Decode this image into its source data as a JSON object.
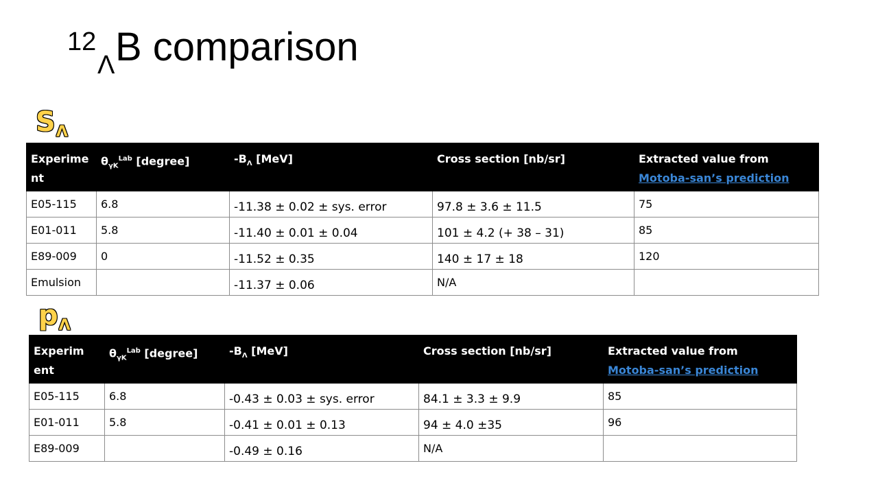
{
  "title": {
    "superscript": "12",
    "subscript": "Λ",
    "main": "B comparison"
  },
  "sections": [
    {
      "label": "S",
      "sub": "Λ"
    },
    {
      "label": "p",
      "sub": "Λ"
    }
  ],
  "table_header": {
    "experiment_1": "Experime nt",
    "experiment_2": "Experim ent",
    "theta_main": "θ",
    "theta_sub": "γK",
    "theta_sup": "Lab",
    "theta_rest": " [degree]",
    "binding_pre": "-B",
    "binding_sub": "Λ",
    "binding_rest": " [MeV]",
    "cross_section": "Cross section [nb/sr]",
    "extracted": "Extracted value from",
    "extracted_link": "Motoba-san’s prediction"
  },
  "s_table": {
    "rows": [
      {
        "experiment": "E05-115",
        "theta": "6.8",
        "binding": "-11.38 ± 0.02 ± sys. error",
        "cross": "97.8 ± 3.6 ± 11.5",
        "extracted": "75"
      },
      {
        "experiment": "E01-011",
        "theta": "5.8",
        "binding": "-11.40 ± 0.01 ± 0.04",
        "cross": "101 ± 4.2 (+ 38 – 31)",
        "extracted": "85"
      },
      {
        "experiment": "E89-009",
        "theta": "0",
        "binding": "-11.52 ± 0.35",
        "cross": "140 ± 17 ± 18",
        "extracted": "120"
      },
      {
        "experiment": "Emulsion",
        "theta": "",
        "binding": "-11.37 ± 0.06",
        "cross": "N/A",
        "extracted": ""
      }
    ]
  },
  "p_table": {
    "rows": [
      {
        "experiment": "E05-115",
        "theta": "6.8",
        "binding": "-0.43 ± 0.03 ± sys. error",
        "cross": "84.1 ± 3.3 ± 9.9",
        "extracted": "85"
      },
      {
        "experiment": "E01-011",
        "theta": "5.8",
        "binding": "-0.41 ± 0.01 ± 0.13",
        "cross": "94 ± 4.0 ±35",
        "extracted": "96"
      },
      {
        "experiment": "E89-009",
        "theta": "",
        "binding": "-0.49 ± 0.16",
        "cross": "N/A",
        "extracted": ""
      }
    ]
  },
  "colors": {
    "section_label": "#ffd24a",
    "header_bg": "#000000",
    "link": "#3a86d6"
  }
}
